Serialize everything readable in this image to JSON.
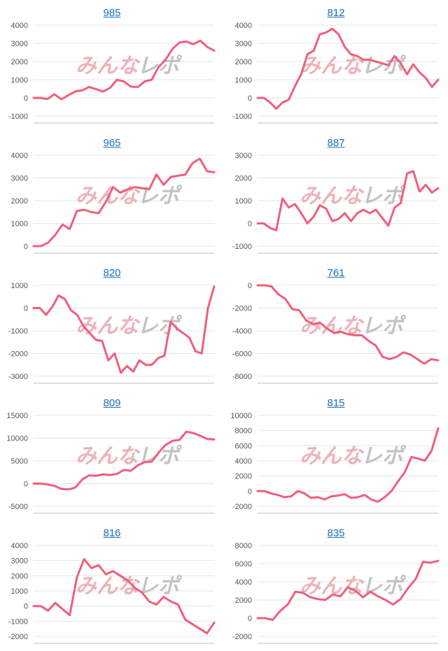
{
  "colors": {
    "series": "#f05f7a",
    "title": "#1a6fc4",
    "grid": "#e4e4e4",
    "axis": "#bbbbbb"
  },
  "watermark": {
    "part1": "みんな",
    "part2": "レポ"
  },
  "chart_data": [
    {
      "type": "line",
      "title": "985",
      "ylim": [
        -1000,
        4000
      ],
      "yticks": [
        -1000,
        0,
        1000,
        2000,
        3000,
        4000
      ],
      "values": [
        0,
        0,
        -60,
        200,
        -80,
        150,
        350,
        420,
        600,
        480,
        350,
        550,
        1000,
        900,
        620,
        600,
        900,
        1000,
        1700,
        2100,
        2700,
        3050,
        3100,
        2950,
        3150,
        2800,
        2600
      ]
    },
    {
      "type": "line",
      "title": "812",
      "ylim": [
        -1000,
        4000
      ],
      "yticks": [
        -1000,
        0,
        1000,
        2000,
        3000,
        4000
      ],
      "values": [
        0,
        0,
        -250,
        -600,
        -250,
        -100,
        650,
        1300,
        2400,
        2600,
        3500,
        3600,
        3800,
        3500,
        2800,
        2400,
        2300,
        2100,
        2100,
        2000,
        1900,
        1800,
        2300,
        1900,
        1300,
        1850,
        1400,
        1100,
        600,
        1000
      ]
    },
    {
      "type": "line",
      "title": "965",
      "ylim": [
        0,
        4000
      ],
      "yticks": [
        0,
        1000,
        2000,
        3000,
        4000
      ],
      "values": [
        0,
        0,
        150,
        500,
        950,
        750,
        1550,
        1600,
        1500,
        1450,
        1950,
        2600,
        2350,
        2500,
        2600,
        2550,
        2500,
        3150,
        2700,
        3050,
        3100,
        3150,
        3650,
        3850,
        3300,
        3250
      ]
    },
    {
      "type": "line",
      "title": "887",
      "ylim": [
        -1000,
        3000
      ],
      "yticks": [
        -1000,
        0,
        1000,
        2000,
        3000
      ],
      "values": [
        0,
        0,
        -200,
        -300,
        1100,
        700,
        850,
        450,
        0,
        300,
        800,
        650,
        100,
        200,
        450,
        100,
        450,
        600,
        450,
        600,
        250,
        -100,
        700,
        900,
        2200,
        2300,
        1400,
        1700,
        1350,
        1550
      ]
    },
    {
      "type": "line",
      "title": "820",
      "ylim": [
        -3000,
        1000
      ],
      "yticks": [
        -3000,
        -2000,
        -1000,
        0,
        1000
      ],
      "values": [
        0,
        0,
        -300,
        50,
        550,
        400,
        -100,
        -300,
        -800,
        -1100,
        -1400,
        -1450,
        -2300,
        -2000,
        -2850,
        -2550,
        -2800,
        -2300,
        -2500,
        -2500,
        -2200,
        -2100,
        -600,
        -900,
        -1100,
        -1300,
        -1900,
        -2000,
        0,
        950
      ]
    },
    {
      "type": "line",
      "title": "761",
      "ylim": [
        -8000,
        0
      ],
      "yticks": [
        -8000,
        -6000,
        -4000,
        -2000,
        0
      ],
      "values": [
        0,
        0,
        -100,
        -800,
        -1200,
        -2100,
        -2200,
        -3100,
        -3400,
        -3300,
        -3800,
        -4200,
        -4100,
        -4300,
        -4400,
        -4400,
        -4900,
        -5300,
        -6300,
        -6500,
        -6300,
        -5900,
        -6100,
        -6500,
        -6900,
        -6500,
        -6600
      ]
    },
    {
      "type": "line",
      "title": "809",
      "ylim": [
        -5000,
        15000
      ],
      "yticks": [
        -5000,
        0,
        5000,
        10000,
        15000
      ],
      "values": [
        0,
        0,
        -200,
        -500,
        -1200,
        -1300,
        -900,
        900,
        1800,
        1700,
        2000,
        1900,
        2100,
        3000,
        2800,
        4000,
        4700,
        4800,
        6800,
        8500,
        9400,
        9600,
        11400,
        11100,
        10500,
        9800,
        9700
      ]
    },
    {
      "type": "line",
      "title": "815",
      "ylim": [
        -2000,
        10000
      ],
      "yticks": [
        -2000,
        0,
        2000,
        4000,
        6000,
        8000,
        10000
      ],
      "values": [
        0,
        0,
        -300,
        -500,
        -800,
        -700,
        0,
        -300,
        -900,
        -800,
        -1100,
        -700,
        -600,
        -400,
        -900,
        -800,
        -500,
        -1100,
        -1400,
        -800,
        0,
        1300,
        2500,
        4500,
        4300,
        4000,
        5300,
        8300
      ]
    },
    {
      "type": "line",
      "title": "816",
      "ylim": [
        -2000,
        4000
      ],
      "yticks": [
        -2000,
        -1000,
        0,
        1000,
        2000,
        3000,
        4000
      ],
      "values": [
        0,
        0,
        -300,
        200,
        -200,
        -600,
        1900,
        3100,
        2500,
        2700,
        2100,
        2300,
        2000,
        1700,
        1200,
        900,
        300,
        100,
        600,
        300,
        100,
        -900,
        -1200,
        -1500,
        -1800,
        -1100
      ]
    },
    {
      "type": "line",
      "title": "835",
      "ylim": [
        -2000,
        8000
      ],
      "yticks": [
        -2000,
        0,
        2000,
        4000,
        6000,
        8000
      ],
      "values": [
        0,
        0,
        -200,
        800,
        1500,
        2900,
        2800,
        2300,
        2100,
        2000,
        2600,
        2400,
        3400,
        3000,
        2300,
        2900,
        2400,
        2000,
        1500,
        2100,
        3300,
        4300,
        6200,
        6100,
        6300
      ]
    }
  ]
}
